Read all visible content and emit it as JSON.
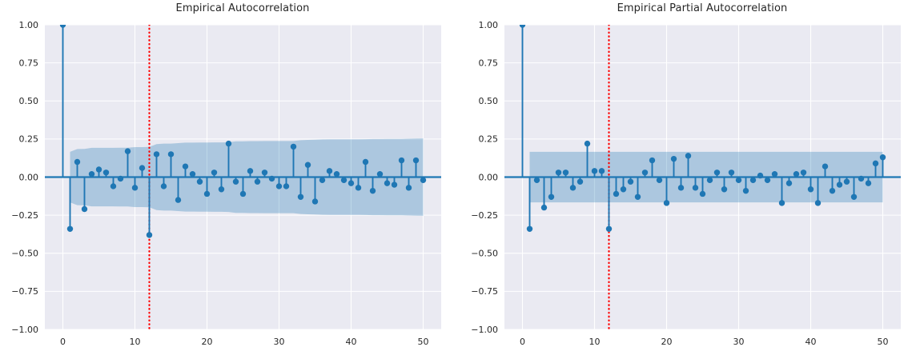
{
  "figure_titles": {
    "left": "Empirical Autocorrelation",
    "right": "Empirical Partial Autocorrelation"
  },
  "colors": {
    "stem": "#1f77b4",
    "zero_line": "#1f77b4",
    "confidence_band": "rgba(31,119,180,0.30)",
    "cutoff_line": "#ff0000",
    "panel_background": "#eaeaf2",
    "gridline": "#ffffff",
    "tick_text": "#262626",
    "figure_background": "#ffffff"
  },
  "chart_data": [
    {
      "type": "stem",
      "title": "Empirical Autocorrelation",
      "xlabel": "",
      "ylabel": "",
      "lag_start": 0,
      "x": [
        0,
        1,
        2,
        3,
        4,
        5,
        6,
        7,
        8,
        9,
        10,
        11,
        12,
        13,
        14,
        15,
        16,
        17,
        18,
        19,
        20,
        21,
        22,
        23,
        24,
        25,
        26,
        27,
        28,
        29,
        30,
        31,
        32,
        33,
        34,
        35,
        36,
        37,
        38,
        39,
        40,
        41,
        42,
        43,
        44,
        45,
        46,
        47,
        48,
        49,
        50
      ],
      "values": [
        1.0,
        -0.34,
        0.1,
        -0.21,
        0.02,
        0.05,
        0.03,
        -0.06,
        -0.01,
        0.17,
        -0.07,
        0.06,
        -0.38,
        0.15,
        -0.06,
        0.15,
        -0.15,
        0.07,
        0.02,
        -0.03,
        -0.11,
        0.03,
        -0.08,
        0.22,
        -0.03,
        -0.11,
        0.04,
        -0.03,
        0.03,
        -0.01,
        -0.06,
        -0.06,
        0.2,
        -0.13,
        0.08,
        -0.16,
        -0.02,
        0.04,
        0.02,
        -0.02,
        -0.04,
        -0.07,
        0.1,
        -0.09,
        0.02,
        -0.04,
        -0.05,
        0.11,
        -0.07,
        0.11,
        -0.02
      ],
      "band_from_lag": 1,
      "band_upper": [
        0.166,
        0.184,
        0.185,
        0.192,
        0.192,
        0.192,
        0.192,
        0.193,
        0.193,
        0.197,
        0.197,
        0.198,
        0.217,
        0.22,
        0.22,
        0.223,
        0.226,
        0.226,
        0.227,
        0.227,
        0.228,
        0.228,
        0.229,
        0.235,
        0.235,
        0.236,
        0.236,
        0.237,
        0.237,
        0.237,
        0.237,
        0.237,
        0.242,
        0.244,
        0.245,
        0.247,
        0.248,
        0.248,
        0.248,
        0.248,
        0.248,
        0.249,
        0.25,
        0.25,
        0.251,
        0.251,
        0.251,
        0.252,
        0.253,
        0.254
      ],
      "vline_x": 12,
      "vline_style": "dotted",
      "xlim": [
        -2.5,
        52.5
      ],
      "ylim": [
        -1,
        1
      ],
      "xticks": [
        0,
        10,
        20,
        30,
        40,
        50
      ],
      "xtick_labels": [
        "0",
        "10",
        "20",
        "30",
        "40",
        "50"
      ],
      "yticks": [
        1.0,
        0.75,
        0.5,
        0.25,
        0.0,
        -0.25,
        -0.5,
        -0.75,
        -1.0
      ],
      "ytick_labels": [
        "1.00",
        "0.75",
        "0.50",
        "0.25",
        "0.00",
        "−0.25",
        "−0.50",
        "−0.75",
        "−1.00"
      ],
      "grid": "on",
      "legend": "none"
    },
    {
      "type": "stem",
      "title": "Empirical Partial Autocorrelation",
      "xlabel": "",
      "ylabel": "",
      "lag_start": 0,
      "x": [
        0,
        1,
        2,
        3,
        4,
        5,
        6,
        7,
        8,
        9,
        10,
        11,
        12,
        13,
        14,
        15,
        16,
        17,
        18,
        19,
        20,
        21,
        22,
        23,
        24,
        25,
        26,
        27,
        28,
        29,
        30,
        31,
        32,
        33,
        34,
        35,
        36,
        37,
        38,
        39,
        40,
        41,
        42,
        43,
        44,
        45,
        46,
        47,
        48,
        49,
        50
      ],
      "values": [
        1.0,
        -0.34,
        -0.02,
        -0.2,
        -0.13,
        0.03,
        0.03,
        -0.07,
        -0.03,
        0.22,
        0.04,
        0.04,
        -0.34,
        -0.11,
        -0.08,
        -0.03,
        -0.13,
        0.03,
        0.11,
        -0.02,
        -0.17,
        0.12,
        -0.07,
        0.14,
        -0.07,
        -0.11,
        -0.02,
        0.03,
        -0.08,
        0.03,
        -0.02,
        -0.09,
        -0.02,
        0.01,
        -0.02,
        0.02,
        -0.17,
        -0.04,
        0.02,
        0.03,
        -0.08,
        -0.17,
        0.07,
        -0.09,
        -0.05,
        -0.03,
        -0.13,
        -0.01,
        -0.04,
        0.09,
        0.13
      ],
      "band_from_lag": 1,
      "band_constant": 0.166,
      "vline_x": 12,
      "vline_style": "dotted",
      "xlim": [
        -2.5,
        52.5
      ],
      "ylim": [
        -1,
        1
      ],
      "xticks": [
        0,
        10,
        20,
        30,
        40,
        50
      ],
      "xtick_labels": [
        "0",
        "10",
        "20",
        "30",
        "40",
        "50"
      ],
      "yticks": [
        1.0,
        0.75,
        0.5,
        0.25,
        0.0,
        -0.25,
        -0.5,
        -0.75,
        -1.0
      ],
      "ytick_labels": [
        "1.00",
        "0.75",
        "0.50",
        "0.25",
        "0.00",
        "−0.25",
        "−0.50",
        "−0.75",
        "−1.00"
      ],
      "grid": "on",
      "legend": "none"
    }
  ]
}
